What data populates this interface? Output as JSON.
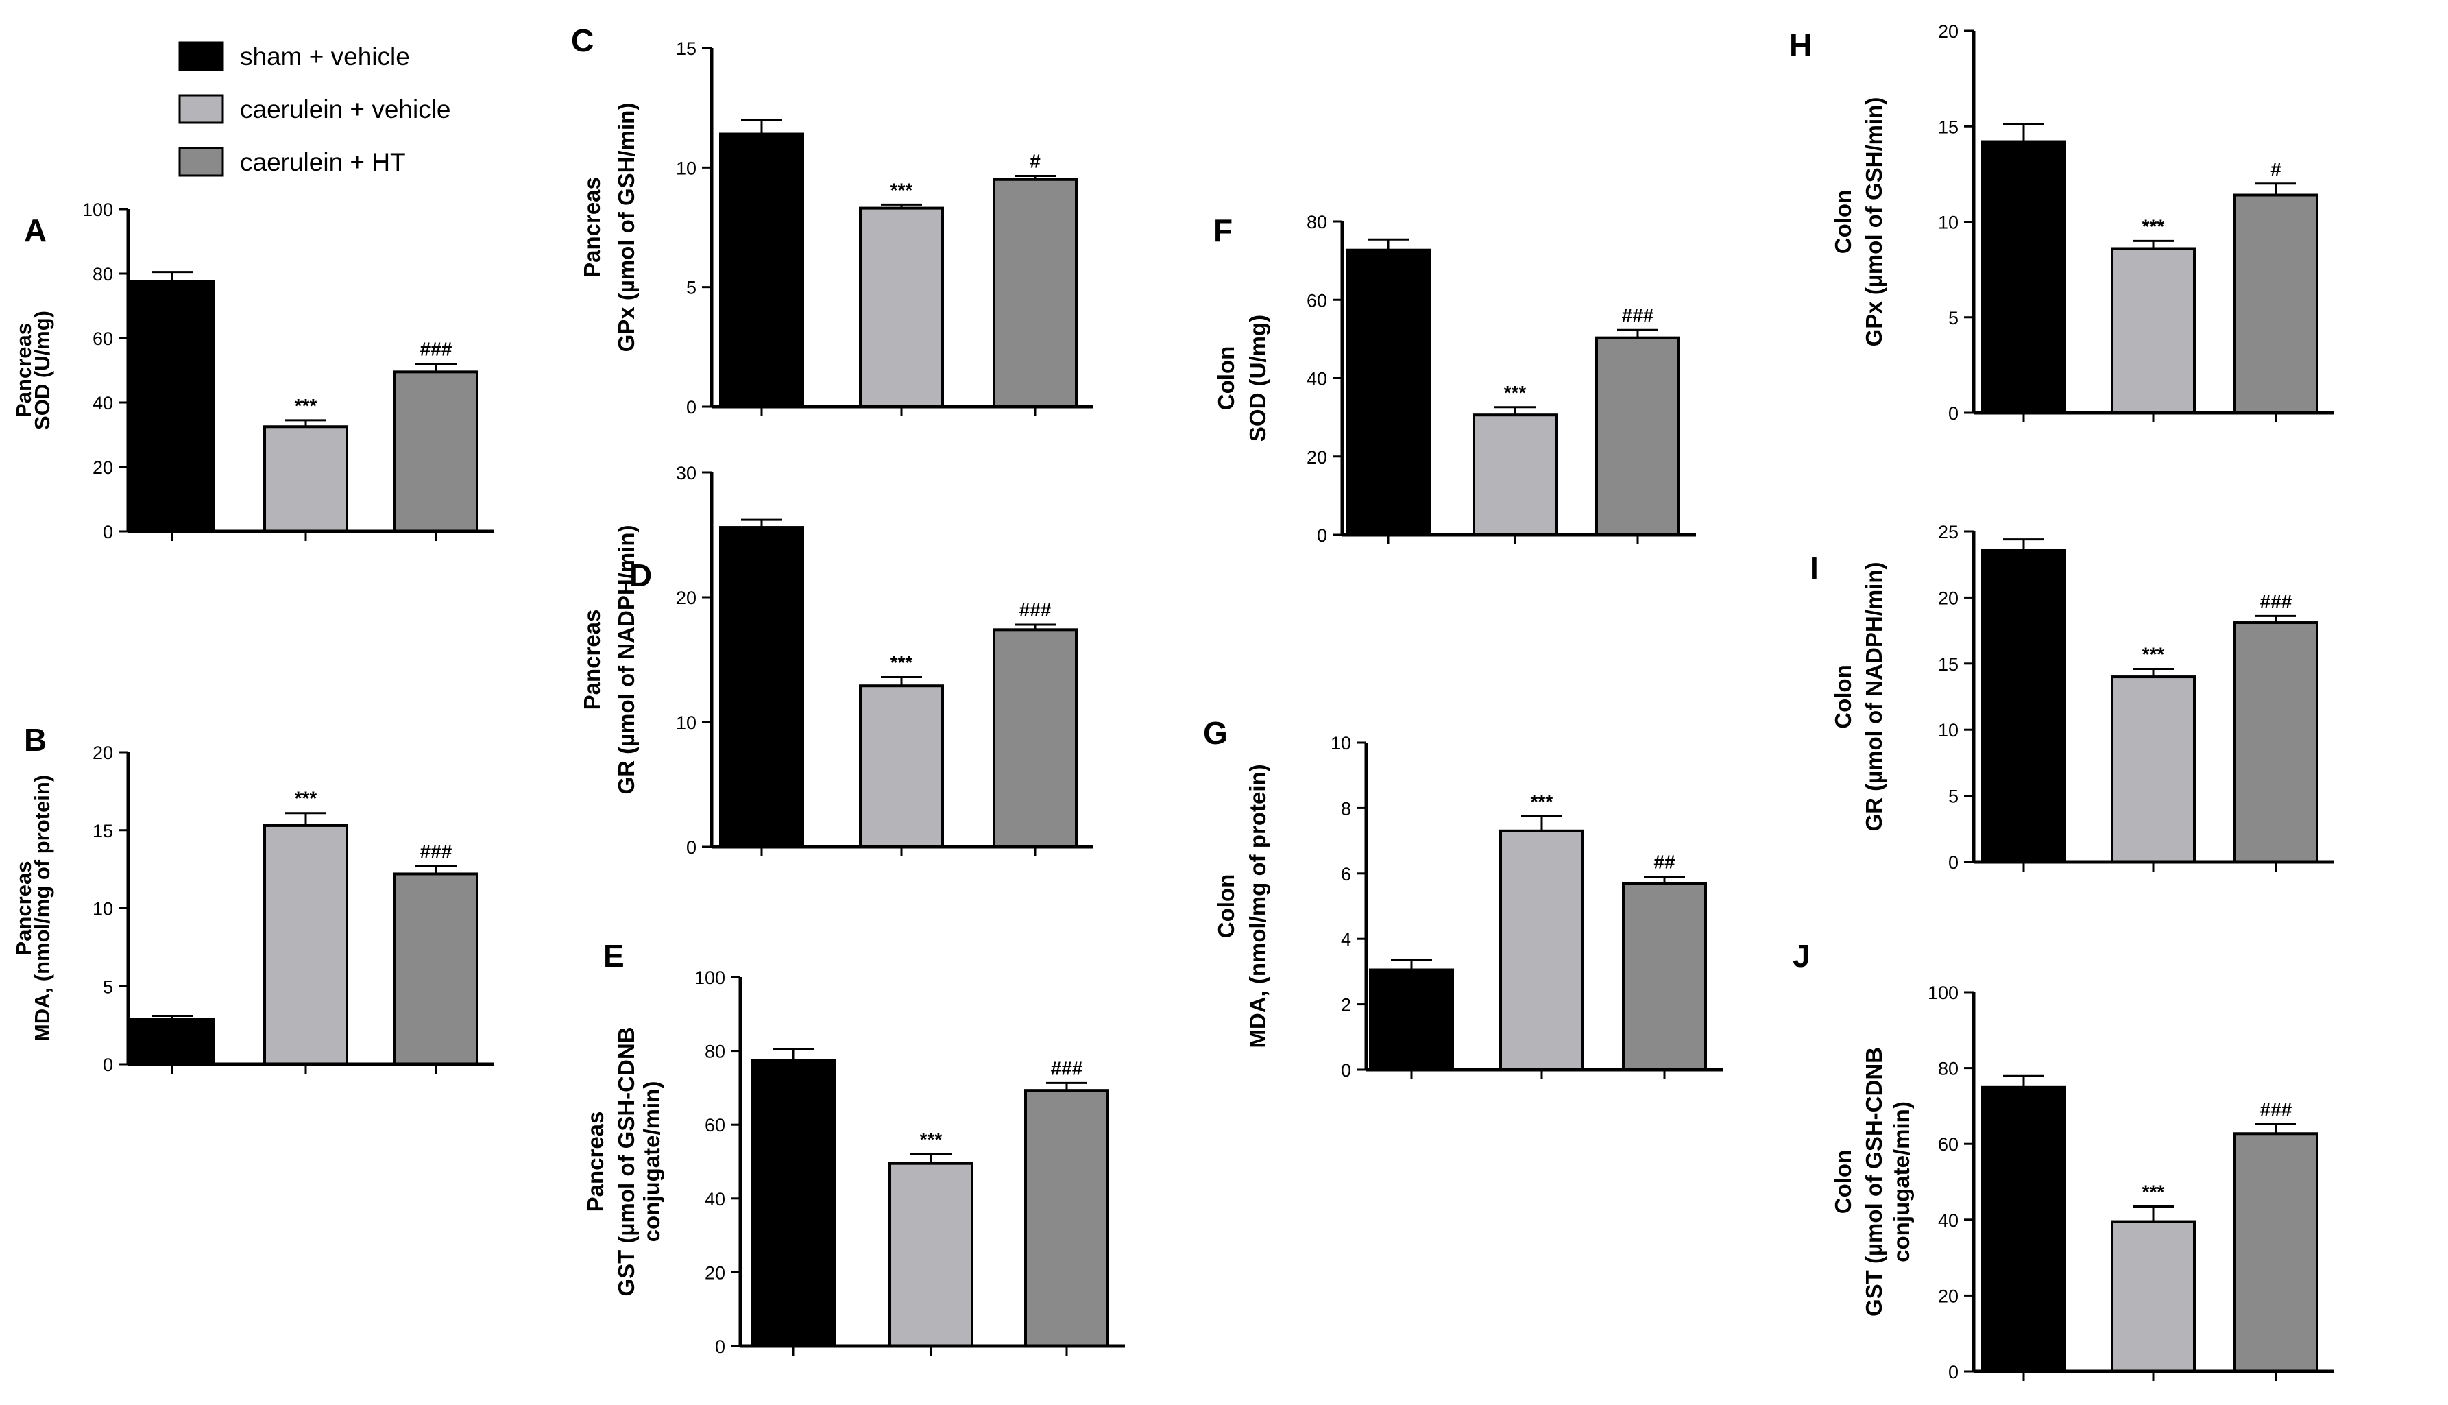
{
  "figure": {
    "background": "#ffffff"
  },
  "legend": {
    "items": [
      {
        "label": "sham + vehicle",
        "color": "#000000"
      },
      {
        "label": "caerulein + vehicle",
        "color": "#b4b4b9"
      },
      {
        "label": "caerulein + HT",
        "color": "#8a8a8a"
      }
    ]
  },
  "chart_data": [
    {
      "letter": "A",
      "type": "bar",
      "tissue": "Pancreas",
      "ylabel": "SOD (U/mg)",
      "ylabel_lines": [
        "Pancreas",
        "SOD (U/mg)"
      ],
      "categories": [
        "sham + vehicle",
        "caerulein + vehicle",
        "caerulein + HT"
      ],
      "values": [
        77.5,
        32.5,
        49.5
      ],
      "errors": [
        3,
        2,
        2.5
      ],
      "significance": [
        "",
        "***",
        "###"
      ],
      "ylim": [
        0,
        100
      ],
      "yticks": [
        0,
        20,
        40,
        60,
        80,
        100
      ]
    },
    {
      "letter": "B",
      "type": "bar",
      "tissue": "Pancreas",
      "ylabel": "MDA, (nmol/mg of protein)",
      "ylabel_lines": [
        "Pancreas",
        "MDA, (nmol/mg of protein)"
      ],
      "categories": [
        "sham + vehicle",
        "caerulein + vehicle",
        "caerulein + HT"
      ],
      "values": [
        2.9,
        15.3,
        12.2
      ],
      "errors": [
        0.2,
        0.8,
        0.5
      ],
      "significance": [
        "",
        "***",
        "###"
      ],
      "ylim": [
        0,
        20
      ],
      "yticks": [
        0,
        5,
        10,
        15,
        20
      ]
    },
    {
      "letter": "C",
      "type": "bar",
      "tissue": "Pancreas",
      "ylabel": "GPx (µmol of GSH/min)",
      "ylabel_lines": [
        "Pancreas",
        "GPx (µmol of GSH/min)"
      ],
      "categories": [
        "sham + vehicle",
        "caerulein + vehicle",
        "caerulein + HT"
      ],
      "values": [
        11.4,
        8.3,
        9.5
      ],
      "errors": [
        0.6,
        0.15,
        0.15
      ],
      "significance": [
        "",
        "***",
        "#"
      ],
      "ylim": [
        0,
        15
      ],
      "yticks": [
        0,
        5,
        10,
        15
      ]
    },
    {
      "letter": "D",
      "type": "bar",
      "tissue": "Pancreas",
      "ylabel": "GR (µmol of NADPH/min)",
      "ylabel_lines": [
        "Pancreas",
        "GR (µmol of NADPH/min)"
      ],
      "categories": [
        "sham + vehicle",
        "caerulein + vehicle",
        "caerulein + HT"
      ],
      "values": [
        25.6,
        12.9,
        17.4
      ],
      "errors": [
        0.6,
        0.7,
        0.4
      ],
      "significance": [
        "",
        "***",
        "###"
      ],
      "ylim": [
        0,
        30
      ],
      "yticks": [
        0,
        10,
        20,
        30
      ]
    },
    {
      "letter": "E",
      "type": "bar",
      "tissue": "Pancreas",
      "ylabel": "GST (µmol of GSH-CDNB conjugate/min)",
      "ylabel_lines": [
        "Pancreas",
        "GST (µmol of GSH-CDNB",
        "conjugate/min)"
      ],
      "categories": [
        "sham + vehicle",
        "caerulein + vehicle",
        "caerulein + HT"
      ],
      "values": [
        77.5,
        49.5,
        69.3
      ],
      "errors": [
        3,
        2.5,
        2
      ],
      "significance": [
        "",
        "***",
        "###"
      ],
      "ylim": [
        0,
        100
      ],
      "yticks": [
        0,
        20,
        40,
        60,
        80,
        100
      ]
    },
    {
      "letter": "F",
      "type": "bar",
      "tissue": "Colon",
      "ylabel": "SOD (U/mg)",
      "ylabel_lines": [
        "Colon",
        "SOD (U/mg)"
      ],
      "categories": [
        "sham + vehicle",
        "caerulein + vehicle",
        "caerulein + HT"
      ],
      "values": [
        72.7,
        30.6,
        50.3
      ],
      "errors": [
        2.7,
        2,
        2
      ],
      "significance": [
        "",
        "***",
        "###"
      ],
      "ylim": [
        0,
        80
      ],
      "yticks": [
        0,
        20,
        40,
        60,
        80
      ]
    },
    {
      "letter": "G",
      "type": "bar",
      "tissue": "Colon",
      "ylabel": "MDA, (nmol/mg of protein)",
      "ylabel_lines": [
        "Colon",
        "MDA, (nmol/mg of protein)"
      ],
      "categories": [
        "sham + vehicle",
        "caerulein + vehicle",
        "caerulein + HT"
      ],
      "values": [
        3.05,
        7.3,
        5.7
      ],
      "errors": [
        0.3,
        0.45,
        0.2
      ],
      "significance": [
        "",
        "***",
        "##"
      ],
      "ylim": [
        0,
        10
      ],
      "yticks": [
        0,
        2,
        4,
        6,
        8,
        10
      ]
    },
    {
      "letter": "H",
      "type": "bar",
      "tissue": "Colon",
      "ylabel": "GPx (µmol of GSH/min)",
      "ylabel_lines": [
        "Colon",
        "GPx (µmol of GSH/min)"
      ],
      "categories": [
        "sham + vehicle",
        "caerulein + vehicle",
        "caerulein + HT"
      ],
      "values": [
        14.2,
        8.6,
        11.4
      ],
      "errors": [
        0.9,
        0.4,
        0.6
      ],
      "significance": [
        "",
        "***",
        "#"
      ],
      "ylim": [
        0,
        20
      ],
      "yticks": [
        0,
        5,
        10,
        15,
        20
      ]
    },
    {
      "letter": "I",
      "type": "bar",
      "tissue": "Colon",
      "ylabel": "GR (µmol of NADPH/min)",
      "ylabel_lines": [
        "Colon",
        "GR (µmol of NADPH/min)"
      ],
      "categories": [
        "sham + vehicle",
        "caerulein + vehicle",
        "caerulein + HT"
      ],
      "values": [
        23.6,
        14.0,
        18.1
      ],
      "errors": [
        0.8,
        0.6,
        0.5
      ],
      "significance": [
        "",
        "***",
        "###"
      ],
      "ylim": [
        0,
        25
      ],
      "yticks": [
        0,
        5,
        10,
        15,
        20,
        25
      ]
    },
    {
      "letter": "J",
      "type": "bar",
      "tissue": "Colon",
      "ylabel": "GST (µmol of GSH-CDNB conjugate/min)",
      "ylabel_lines": [
        "Colon",
        "GST (µmol of GSH-CDNB",
        "conjugate/min)"
      ],
      "categories": [
        "sham + vehicle",
        "caerulein + vehicle",
        "caerulein + HT"
      ],
      "values": [
        74.9,
        39.5,
        62.7
      ],
      "errors": [
        3,
        4,
        2.5
      ],
      "significance": [
        "",
        "***",
        "###"
      ],
      "ylim": [
        0,
        100
      ],
      "yticks": [
        0,
        20,
        40,
        60,
        80,
        100
      ]
    }
  ]
}
